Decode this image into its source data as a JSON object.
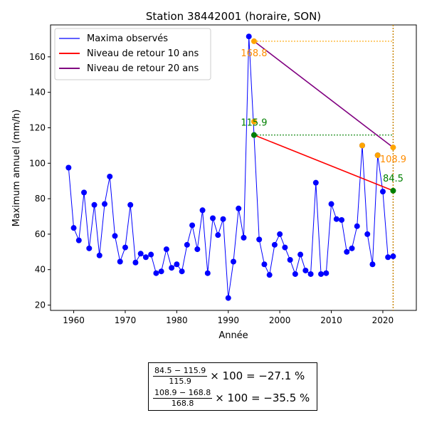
{
  "chart_data": {
    "type": "line",
    "title": "Station 38442001 (horaire, SON)",
    "xlabel": "Année",
    "ylabel": "Maximum annuel (mm/h)",
    "xlim": [
      1955.5,
      2026.5
    ],
    "ylim": [
      17,
      178
    ],
    "xticks": [
      1960,
      1970,
      1980,
      1990,
      2000,
      2010,
      2020
    ],
    "yticks": [
      20,
      40,
      60,
      80,
      100,
      120,
      140,
      160
    ],
    "grid": false,
    "legend_position": "top-left",
    "series": [
      {
        "name": "Maxima observés",
        "color": "#0000ff",
        "x": [
          1959,
          1960,
          1961,
          1962,
          1963,
          1964,
          1965,
          1966,
          1967,
          1968,
          1969,
          1970,
          1971,
          1972,
          1973,
          1974,
          1975,
          1976,
          1977,
          1978,
          1979,
          1980,
          1981,
          1982,
          1983,
          1984,
          1985,
          1986,
          1987,
          1988,
          1989,
          1990,
          1991,
          1992,
          1993,
          1994,
          1995,
          1996,
          1997,
          1998,
          1999,
          2000,
          2001,
          2002,
          2003,
          2004,
          2005,
          2006,
          2007,
          2008,
          2009,
          2010,
          2011,
          2012,
          2013,
          2014,
          2015,
          2016,
          2017,
          2018,
          2019,
          2020,
          2021,
          2022
        ],
        "y": [
          97.5,
          63.5,
          56.5,
          83.5,
          52,
          76.5,
          48,
          77,
          92.5,
          59,
          44.5,
          52.5,
          76.5,
          44,
          49,
          47,
          48.5,
          38,
          39,
          51.5,
          41,
          43,
          39,
          54,
          65,
          51.5,
          73.5,
          38,
          69,
          59.5,
          68.5,
          24,
          44.5,
          74.5,
          58,
          171.5,
          115.9,
          57,
          43,
          37,
          54,
          60,
          52.5,
          45.5,
          37.5,
          48.5,
          39.5,
          37.5,
          89,
          37.5,
          38,
          77,
          68.5,
          68,
          50,
          52,
          64.5,
          110,
          60,
          43,
          104.5,
          84,
          47,
          47.5
        ]
      },
      {
        "name": "Niveau de retour 10 ans",
        "color": "#ff0000",
        "x": [
          1995,
          2022
        ],
        "y": [
          115.9,
          84.5
        ]
      },
      {
        "name": "Niveau de retour 20 ans",
        "color": "#800080",
        "x": [
          1995,
          2022
        ],
        "y": [
          168.8,
          108.9
        ]
      }
    ],
    "orange_points": [
      {
        "x": 1995,
        "y": 168.8
      },
      {
        "x": 1995,
        "y": 123.5
      },
      {
        "x": 2016,
        "y": 110
      },
      {
        "x": 2019,
        "y": 104.5
      },
      {
        "x": 2022,
        "y": 108.9
      }
    ],
    "green_points": [
      {
        "x": 1995,
        "y": 115.9
      },
      {
        "x": 2022,
        "y": 84.5
      }
    ],
    "reference_lines": {
      "vertical_x": 2022,
      "horizontal_orange_y": 168.8,
      "horizontal_green_y": 115.9
    },
    "annotations": [
      {
        "text": "168.8",
        "x": 1995,
        "y": 168.8,
        "color": "#ff8c00",
        "pos": "below"
      },
      {
        "text": "115.9",
        "x": 1995,
        "y": 115.9,
        "color": "#008000",
        "pos": "above"
      },
      {
        "text": "108.9",
        "x": 2022,
        "y": 108.9,
        "color": "#ff8c00",
        "pos": "below"
      },
      {
        "text": "84.5",
        "x": 2022,
        "y": 84.5,
        "color": "#008000",
        "pos": "above"
      }
    ]
  },
  "formula_box": {
    "line1_num": "84.5 − 115.9",
    "line1_den": "115.9",
    "line1_rest": "× 100 = −27.1 %",
    "line2_num": "108.9 − 168.8",
    "line2_den": "168.8",
    "line2_rest": "× 100 = −35.5 %"
  }
}
